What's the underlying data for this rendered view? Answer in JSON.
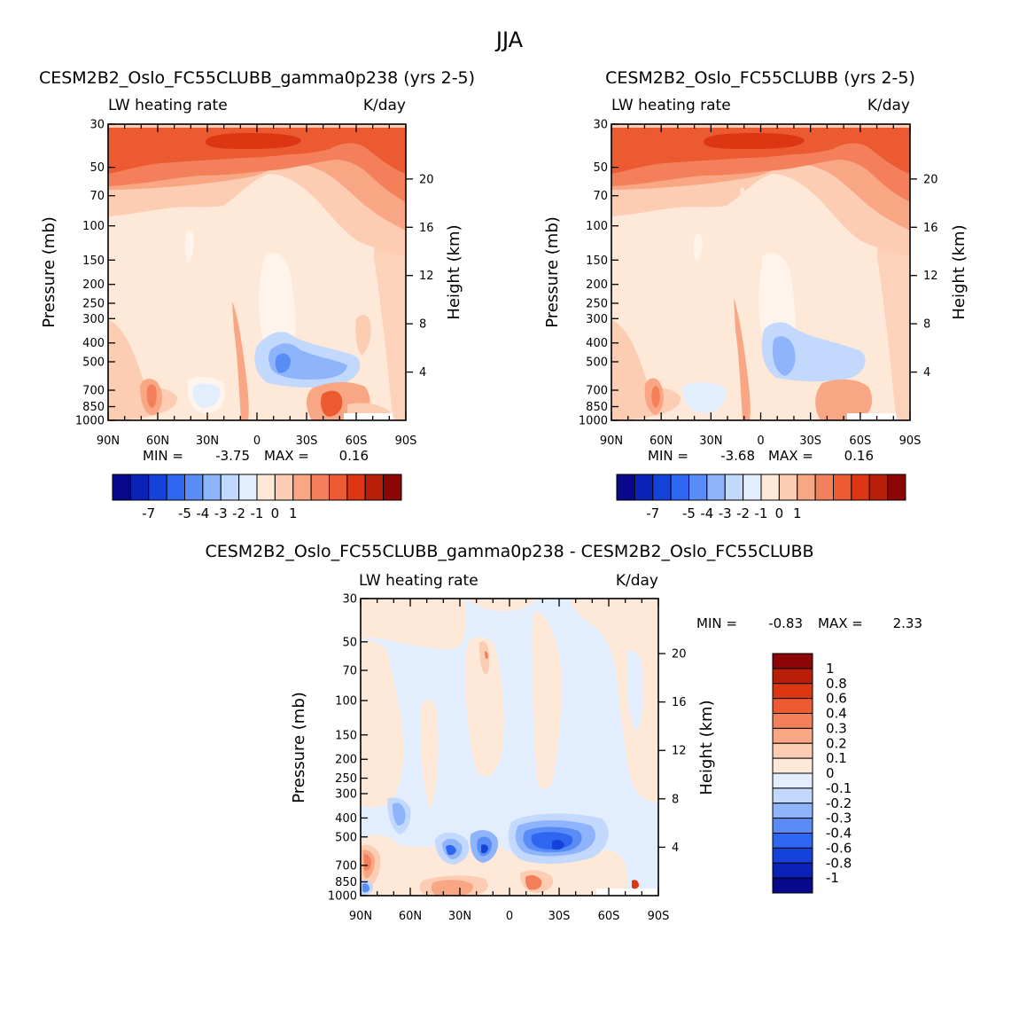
{
  "figure_title": "JJA",
  "colors": {
    "abs_palette": [
      "#08088c",
      "#0a22b8",
      "#1642dc",
      "#2e66f2",
      "#5a8cf8",
      "#8eb4fb",
      "#c2d8fd",
      "#e2eefe",
      "#fee8d8",
      "#fcccb3",
      "#f8a683",
      "#f3805a",
      "#ec5a32",
      "#dd3612",
      "#b81e08",
      "#8c0606"
    ],
    "diff_palette": [
      "#08088c",
      "#0a22b8",
      "#1642dc",
      "#2e66f2",
      "#5a8cf8",
      "#8eb4fb",
      "#c2d8fd",
      "#e2eefe",
      "#fee8d8",
      "#fcccb3",
      "#f8a683",
      "#f3805a",
      "#ec5a32",
      "#dd3612",
      "#b81e08",
      "#8c0606"
    ]
  },
  "chart_data": [
    {
      "id": "panel-exp",
      "type": "heatmap",
      "title": "CESM2B2_Oslo_FC55CLUBB_gamma0p238 (yrs 2-5)",
      "variable": "LW heating rate",
      "units": "K/day",
      "xlabel": "",
      "ylabel": "Pressure (mb)",
      "y2label": "Height (km)",
      "x_ticks": [
        "90N",
        "60N",
        "30N",
        "0",
        "30S",
        "60S",
        "90S"
      ],
      "x_values": [
        90,
        60,
        30,
        0,
        -30,
        -60,
        -90
      ],
      "y_ticks": [
        30,
        50,
        70,
        100,
        150,
        200,
        250,
        300,
        400,
        500,
        700,
        850,
        1000
      ],
      "y_tick_labels": [
        "30",
        "50",
        "70",
        "100",
        "150",
        "200",
        "250",
        "300",
        "400",
        "500",
        "700",
        "850",
        "1000"
      ],
      "y2_ticks": [
        20,
        16,
        12,
        8,
        4
      ],
      "min_label": "MIN =",
      "min": "-3.75",
      "max_label": "MAX =",
      "max": "0.16",
      "colorbar_labels": [
        "-7",
        "-5",
        "-4",
        "-3",
        "-2",
        "-1",
        "0",
        "1"
      ]
    },
    {
      "id": "panel-ctl",
      "type": "heatmap",
      "title": "CESM2B2_Oslo_FC55CLUBB (yrs 2-5)",
      "variable": "LW heating rate",
      "units": "K/day",
      "xlabel": "",
      "ylabel": "Pressure (mb)",
      "y2label": "Height (km)",
      "x_ticks": [
        "90N",
        "60N",
        "30N",
        "0",
        "30S",
        "60S",
        "90S"
      ],
      "x_values": [
        90,
        60,
        30,
        0,
        -30,
        -60,
        -90
      ],
      "y_ticks": [
        30,
        50,
        70,
        100,
        150,
        200,
        250,
        300,
        400,
        500,
        700,
        850,
        1000
      ],
      "y_tick_labels": [
        "30",
        "50",
        "70",
        "100",
        "150",
        "200",
        "250",
        "300",
        "400",
        "500",
        "700",
        "850",
        "1000"
      ],
      "y2_ticks": [
        20,
        16,
        12,
        8,
        4
      ],
      "min_label": "MIN =",
      "min": "-3.68",
      "max_label": "MAX =",
      "max": "0.16",
      "colorbar_labels": [
        "-7",
        "-5",
        "-4",
        "-3",
        "-2",
        "-1",
        "0",
        "1"
      ]
    },
    {
      "id": "panel-diff",
      "type": "heatmap",
      "title": "CESM2B2_Oslo_FC55CLUBB_gamma0p238 - CESM2B2_Oslo_FC55CLUBB",
      "variable": "LW heating rate",
      "units": "K/day",
      "xlabel": "",
      "ylabel": "Pressure (mb)",
      "y2label": "Height (km)",
      "x_ticks": [
        "90N",
        "60N",
        "30N",
        "0",
        "30S",
        "60S",
        "90S"
      ],
      "x_values": [
        90,
        60,
        30,
        0,
        -30,
        -60,
        -90
      ],
      "y_ticks": [
        30,
        50,
        70,
        100,
        150,
        200,
        250,
        300,
        400,
        500,
        700,
        850,
        1000
      ],
      "y_tick_labels": [
        "30",
        "50",
        "70",
        "100",
        "150",
        "200",
        "250",
        "300",
        "400",
        "500",
        "700",
        "850",
        "1000"
      ],
      "y2_ticks": [
        20,
        16,
        12,
        8,
        4
      ],
      "min_label": "MIN =",
      "min": "-0.83",
      "max_label": "MAX =",
      "max": "2.33",
      "colorbar_labels": [
        "1",
        "0.8",
        "0.6",
        "0.4",
        "0.3",
        "0.2",
        "0.1",
        "0",
        "-0.1",
        "-0.2",
        "-0.3",
        "-0.4",
        "-0.6",
        "-0.8",
        "-1"
      ]
    }
  ]
}
